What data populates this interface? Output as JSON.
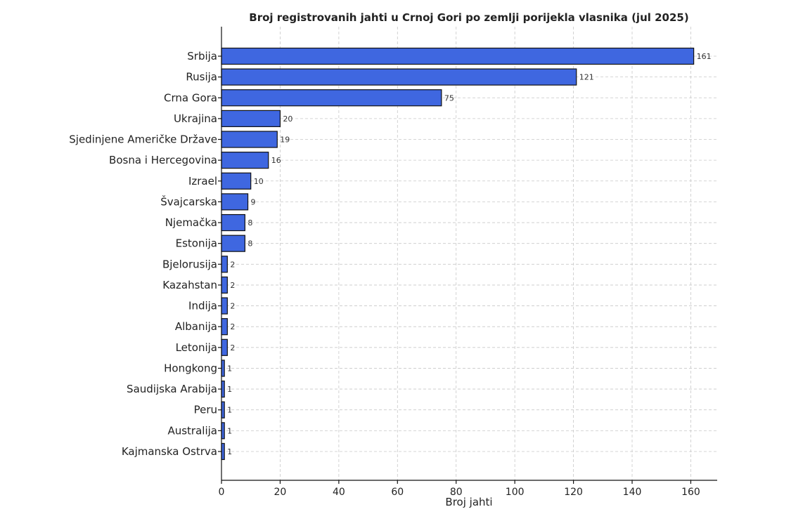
{
  "chart_data": {
    "type": "bar",
    "orientation": "horizontal",
    "title": "Broj registrovanih jahti u Crnoj Gori po zemlji porijekla vlasnika (jul 2025)",
    "xlabel": "Broj jahti",
    "ylabel": "",
    "xlim": [
      0,
      169
    ],
    "xticks": [
      0,
      20,
      40,
      60,
      80,
      100,
      120,
      140,
      160
    ],
    "grid": true,
    "bar_color": "#3f67e0",
    "categories": [
      "Srbija",
      "Rusija",
      "Crna Gora",
      "Ukrajina",
      "Sjedinjene Američke Države",
      "Bosna i Hercegovina",
      "Izrael",
      "Švajcarska",
      "Njemačka",
      "Estonija",
      "Bjelorusija",
      "Kazahstan",
      "Indija",
      "Albanija",
      "Letonija",
      "Hongkong",
      "Saudijska Arabija",
      "Peru",
      "Australija",
      "Kajmanska Ostrva"
    ],
    "values": [
      161,
      121,
      75,
      20,
      19,
      16,
      10,
      9,
      8,
      8,
      2,
      2,
      2,
      2,
      2,
      1,
      1,
      1,
      1,
      1
    ]
  }
}
